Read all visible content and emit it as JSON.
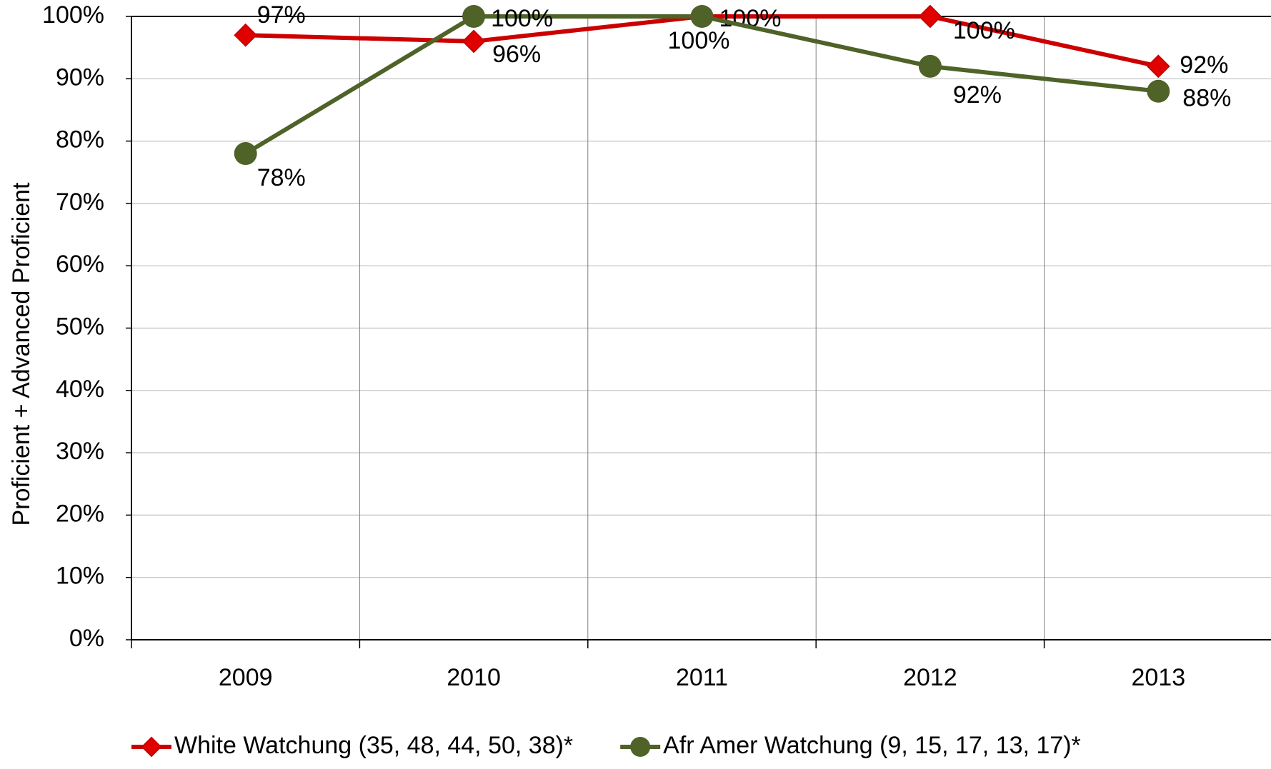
{
  "chart_data": {
    "type": "line",
    "y_label": "Proficient + Advanced Proficient",
    "categories": [
      "2009",
      "2010",
      "2011",
      "2012",
      "2013"
    ],
    "series": [
      {
        "name": "White Watchung (35, 48, 44, 50, 38)*",
        "color": "#cc0000",
        "marker": "diamond",
        "values": [
          97,
          96,
          100,
          100,
          92
        ],
        "value_labels": [
          "97%",
          "96%",
          "100%",
          "100%",
          "92%"
        ]
      },
      {
        "name": "Afr Amer Watchung (9, 15, 17, 13, 17)*",
        "color": "#4f6228",
        "marker": "circle",
        "values": [
          78,
          100,
          100,
          92,
          88
        ],
        "value_labels": [
          "78%",
          "100%",
          "100%",
          "92%",
          "88%"
        ]
      }
    ],
    "ylim": [
      0,
      100
    ],
    "yticks": [
      {
        "value": 0,
        "label": "0%"
      },
      {
        "value": 10,
        "label": "10%"
      },
      {
        "value": 20,
        "label": "20%"
      },
      {
        "value": 30,
        "label": "30%"
      },
      {
        "value": 40,
        "label": "40%"
      },
      {
        "value": 50,
        "label": "50%"
      },
      {
        "value": 60,
        "label": "60%"
      },
      {
        "value": 70,
        "label": "70%"
      },
      {
        "value": 80,
        "label": "80%"
      },
      {
        "value": 90,
        "label": "90%"
      },
      {
        "value": 100,
        "label": "100%"
      }
    ],
    "grid": true,
    "legend": "bottom"
  }
}
